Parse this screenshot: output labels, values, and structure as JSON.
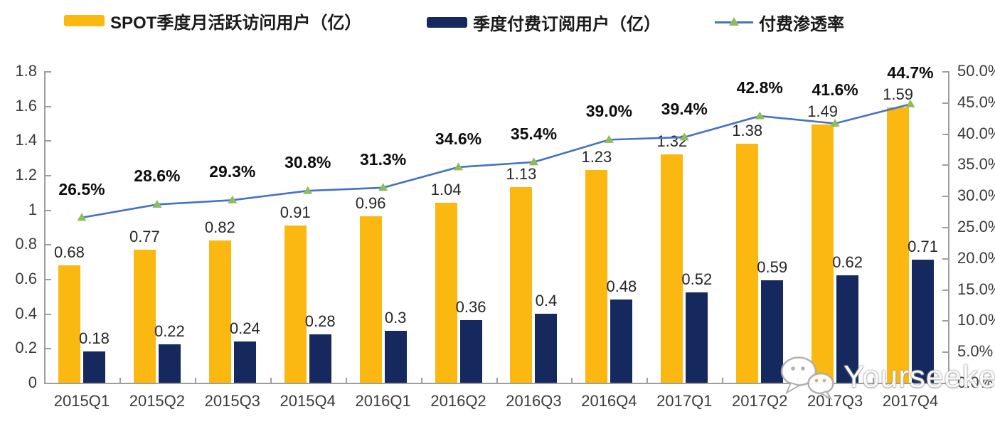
{
  "legend": {
    "items": [
      {
        "label": "SPOT季度月活跃访问用户（亿）",
        "swatch": "bar",
        "color": "#FBB811"
      },
      {
        "label": "季度付费订阅用户（亿）",
        "swatch": "bar",
        "color": "#16295F"
      },
      {
        "label": "付费渗透率",
        "swatch": "line-marker",
        "color": "#4472C4",
        "marker_color": "#8FBC5B"
      }
    ]
  },
  "watermark": {
    "text": "Yourseeker",
    "icon": "wechat-icon"
  },
  "chart_data": {
    "type": "combo",
    "categories": [
      "2015Q1",
      "2015Q2",
      "2015Q3",
      "2015Q4",
      "2016Q1",
      "2016Q2",
      "2016Q3",
      "2016Q4",
      "2017Q1",
      "2017Q2",
      "2017Q3",
      "2017Q4"
    ],
    "series": [
      {
        "name": "SPOT季度月活跃访问用户（亿）",
        "type": "bar",
        "axis": "left",
        "color": "#FBB811",
        "values": [
          0.68,
          0.77,
          0.82,
          0.91,
          0.96,
          1.04,
          1.13,
          1.23,
          1.32,
          1.38,
          1.49,
          1.59
        ],
        "labels": [
          "0.68",
          "0.77",
          "0.82",
          "0.91",
          "0.96",
          "1.04",
          "1.13",
          "1.23",
          "1.32",
          "1.38",
          "1.49",
          "1.59"
        ]
      },
      {
        "name": "季度付费订阅用户（亿）",
        "type": "bar",
        "axis": "left",
        "color": "#16295F",
        "values": [
          0.18,
          0.22,
          0.24,
          0.28,
          0.3,
          0.36,
          0.4,
          0.48,
          0.52,
          0.59,
          0.62,
          0.71
        ],
        "labels": [
          "0.18",
          "0.22",
          "0.24",
          "0.28",
          "0.3",
          "0.36",
          "0.4",
          "0.48",
          "0.52",
          "0.59",
          "0.62",
          "0.71"
        ]
      },
      {
        "name": "付费渗透率",
        "type": "line",
        "axis": "right",
        "color": "#4472C4",
        "marker": "triangle",
        "marker_color": "#8FBC5B",
        "values": [
          26.5,
          28.6,
          29.3,
          30.8,
          31.3,
          34.6,
          35.4,
          39.0,
          39.4,
          42.8,
          41.6,
          44.7
        ],
        "labels": [
          "26.5%",
          "28.6%",
          "29.3%",
          "30.8%",
          "31.3%",
          "34.6%",
          "35.4%",
          "39.0%",
          "39.4%",
          "42.8%",
          "41.6%",
          "44.7%"
        ]
      }
    ],
    "left_axis": {
      "min": 0,
      "max": 1.8,
      "tick_labels": [
        "0",
        "0.2",
        "0.4",
        "0.6",
        "0.8",
        "1",
        "1.2",
        "1.4",
        "1.6",
        "1.8"
      ]
    },
    "right_axis": {
      "min": 0,
      "max": 50,
      "tick_labels": [
        "0.0%",
        "5.0%",
        "10.0%",
        "15.0%",
        "20.0%",
        "25.0%",
        "30.0%",
        "35.0%",
        "40.0%",
        "45.0%",
        "50.0%"
      ]
    },
    "grid": false,
    "legend_position": "top",
    "title": ""
  }
}
